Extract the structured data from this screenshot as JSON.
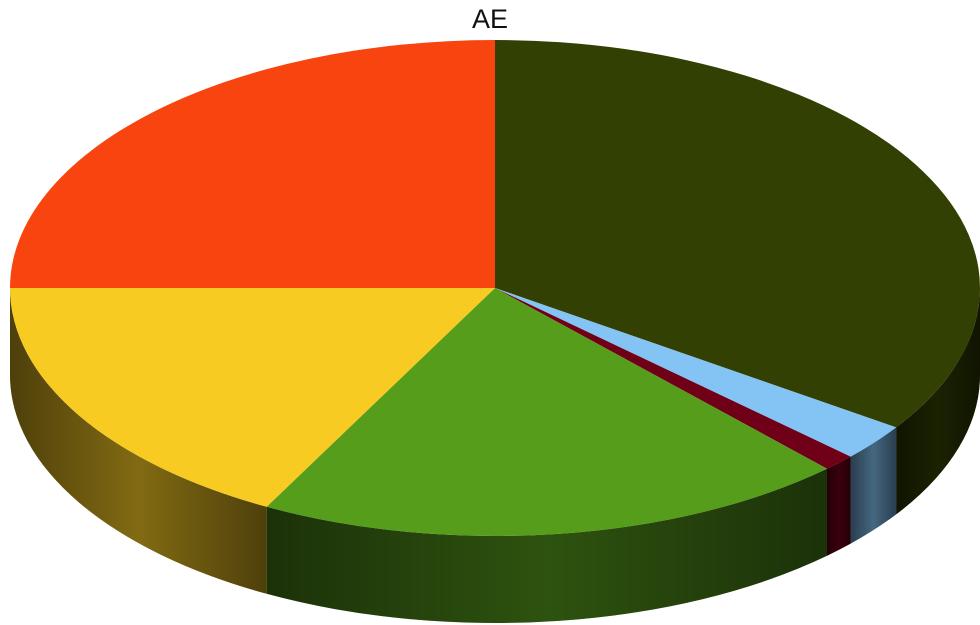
{
  "chart_data": {
    "type": "pie",
    "title": "AE",
    "style": "3d",
    "slices": [
      {
        "value": 34.5,
        "color": "#334003"
      },
      {
        "value": 2.4,
        "color": "#83C4F5"
      },
      {
        "value": 1.1,
        "color": "#6F0018"
      },
      {
        "value": 19.8,
        "color": "#579D1C"
      },
      {
        "value": 17.2,
        "color": "#F7CB22"
      },
      {
        "value": 25.0,
        "color": "#F84510"
      }
    ]
  }
}
